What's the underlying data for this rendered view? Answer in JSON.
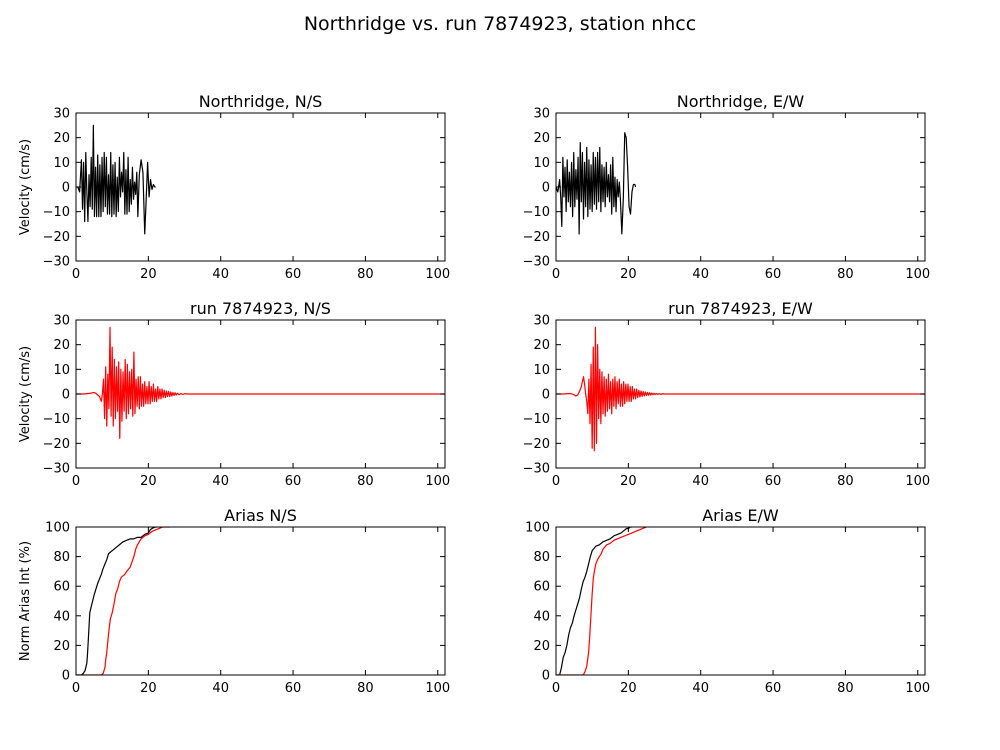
{
  "figure": {
    "title": "Northridge vs. run 7874923, station nhcc"
  },
  "chart_data": [
    {
      "type": "line",
      "title": "Northridge, N/S",
      "xlabel": "",
      "ylabel": "Velocity (cm/s)",
      "xlim": [
        0,
        102
      ],
      "ylim": [
        -30,
        30
      ],
      "xticks": [
        0,
        20,
        40,
        60,
        80,
        100
      ],
      "yticks": [
        -30,
        -20,
        -10,
        0,
        10,
        20,
        30
      ],
      "grid": false,
      "series": [
        {
          "color": "#000000",
          "x": [
            0,
            0.5,
            1,
            1.5,
            1.8,
            2.1,
            2.4,
            2.7,
            3,
            3.3,
            3.6,
            3.9,
            4.2,
            4.5,
            4.8,
            5.1,
            5.4,
            5.7,
            6,
            6.3,
            6.6,
            6.9,
            7.2,
            7.5,
            7.8,
            8.1,
            8.4,
            8.7,
            9,
            9.3,
            9.6,
            9.9,
            10.2,
            10.5,
            10.8,
            11.1,
            11.4,
            11.7,
            12,
            12.3,
            12.6,
            12.9,
            13.2,
            13.5,
            13.8,
            14.1,
            14.4,
            14.7,
            15,
            15.3,
            15.6,
            15.9,
            16.2,
            16.5,
            16.8,
            17.1,
            17.5,
            18,
            18.5,
            19,
            19.4,
            19.8,
            20.2,
            20.6,
            21,
            21.4,
            21.8,
            22
          ],
          "y": [
            0,
            0,
            -2,
            11,
            -9,
            10,
            -14,
            14,
            -2,
            -14,
            5,
            -8,
            12,
            -9,
            25,
            -12,
            8,
            -12,
            13,
            -12,
            9,
            -12,
            12,
            -10,
            14,
            -8,
            12,
            -11,
            5,
            -11,
            14,
            -12,
            9,
            -11,
            10,
            -12,
            4,
            -10,
            12,
            -4,
            6,
            -2,
            14,
            -11,
            7,
            -11,
            12,
            -10,
            3,
            -7,
            8,
            -5,
            2,
            -3,
            6,
            -12,
            5,
            11,
            6,
            -19,
            -5,
            10,
            -4,
            3,
            -1,
            1,
            0,
            0
          ]
        }
      ]
    },
    {
      "type": "line",
      "title": "Northridge, E/W",
      "xlabel": "",
      "ylabel": "",
      "xlim": [
        0,
        102
      ],
      "ylim": [
        -30,
        30
      ],
      "xticks": [
        0,
        20,
        40,
        60,
        80,
        100
      ],
      "yticks": [
        -30,
        -20,
        -10,
        0,
        10,
        20,
        30
      ],
      "grid": false,
      "series": [
        {
          "color": "#000000",
          "x": [
            0,
            0.5,
            1,
            1.3,
            1.6,
            1.9,
            2.2,
            2.5,
            2.8,
            3.1,
            3.4,
            3.7,
            4,
            4.3,
            4.6,
            4.9,
            5.2,
            5.5,
            5.8,
            6.1,
            6.4,
            6.7,
            7,
            7.3,
            7.6,
            7.9,
            8.2,
            8.5,
            8.8,
            9.1,
            9.4,
            9.7,
            10,
            10.3,
            10.6,
            10.9,
            11.2,
            11.5,
            11.8,
            12.1,
            12.4,
            12.7,
            13,
            13.3,
            13.6,
            13.9,
            14.2,
            14.5,
            14.8,
            15.1,
            15.4,
            15.7,
            16,
            16.3,
            16.6,
            16.9,
            17.2,
            17.5,
            17.8,
            18.2,
            18.6,
            19,
            19.4,
            19.8,
            20.2,
            20.6,
            21,
            21.4,
            21.8,
            22
          ],
          "y": [
            0,
            -2,
            3,
            -4,
            -16,
            12,
            -4,
            8,
            -10,
            11,
            -6,
            6,
            -8,
            10,
            -12,
            14,
            -8,
            7,
            -5,
            12,
            -19,
            18,
            -6,
            14,
            -13,
            10,
            -8,
            16,
            -12,
            11,
            -9,
            9,
            -10,
            14,
            -7,
            12,
            -9,
            14,
            -6,
            16,
            -10,
            9,
            -6,
            8,
            -8,
            10,
            -4,
            5,
            -6,
            9,
            -11,
            12,
            -8,
            4,
            -10,
            3,
            -4,
            2,
            -5,
            -19,
            -5,
            22,
            20,
            8,
            -8,
            -11,
            -2,
            1,
            1,
            0
          ]
        }
      ]
    },
    {
      "type": "line",
      "title": "run 7874923, N/S",
      "xlabel": "",
      "ylabel": "Velocity (cm/s)",
      "xlim": [
        0,
        102
      ],
      "ylim": [
        -30,
        30
      ],
      "xticks": [
        0,
        20,
        40,
        60,
        80,
        100
      ],
      "yticks": [
        -30,
        -20,
        -10,
        0,
        10,
        20,
        30
      ],
      "grid": false,
      "series": [
        {
          "color": "#ff0000",
          "x": [
            0,
            2,
            4,
            5,
            5.5,
            6,
            6.5,
            7,
            7.3,
            7.6,
            7.9,
            8.2,
            8.5,
            8.8,
            9.1,
            9.4,
            9.7,
            10,
            10.3,
            10.6,
            10.9,
            11.2,
            11.5,
            11.8,
            12.1,
            12.4,
            12.7,
            13,
            13.3,
            13.6,
            13.9,
            14.2,
            14.5,
            14.8,
            15.1,
            15.4,
            15.7,
            16,
            16.3,
            16.6,
            16.9,
            17.2,
            17.5,
            17.8,
            18.1,
            18.4,
            18.7,
            19,
            19.3,
            19.6,
            19.9,
            20.2,
            20.5,
            20.8,
            21.1,
            21.4,
            21.7,
            22,
            22.3,
            22.6,
            22.9,
            23.2,
            23.5,
            23.8,
            24.1,
            24.4,
            24.7,
            25,
            25.3,
            25.6,
            25.9,
            26.2,
            26.5,
            26.8,
            27.1,
            27.4,
            27.7,
            28,
            28.5,
            29,
            29.5,
            30,
            31,
            33,
            40,
            60,
            80,
            100,
            102
          ],
          "y": [
            0,
            0,
            0.3,
            0.6,
            0.3,
            -0.4,
            -1,
            -3,
            0,
            6,
            -10,
            11,
            -13,
            8,
            -6,
            27,
            -9,
            19,
            -13,
            14,
            -10,
            11,
            -7,
            13,
            -18,
            10,
            -11,
            9,
            -7,
            14,
            -10,
            12,
            -8,
            9,
            -6,
            10,
            -9,
            17,
            -8,
            6,
            -5,
            7,
            -6,
            7,
            -5,
            4,
            -5,
            5,
            -4,
            3,
            -4,
            5,
            -4,
            3,
            -3,
            4,
            -3,
            2,
            -3,
            3,
            -2,
            2,
            -2,
            2,
            -1.5,
            1.5,
            -1.5,
            1.2,
            -1,
            1,
            -1,
            0.8,
            -0.8,
            0.6,
            -0.6,
            0.5,
            -0.4,
            0.3,
            -0.3,
            0.2,
            -0.2,
            0.1,
            0,
            0,
            0,
            0,
            0,
            0,
            0
          ]
        }
      ]
    },
    {
      "type": "line",
      "title": "run 7874923, E/W",
      "xlabel": "",
      "ylabel": "",
      "xlim": [
        0,
        102
      ],
      "ylim": [
        -30,
        30
      ],
      "xticks": [
        0,
        20,
        40,
        60,
        80,
        100
      ],
      "yticks": [
        -30,
        -20,
        -10,
        0,
        10,
        20,
        30
      ],
      "grid": false,
      "series": [
        {
          "color": "#ff0000",
          "x": [
            0,
            2,
            4,
            5,
            5.5,
            6,
            6.5,
            7,
            7.3,
            7.6,
            7.9,
            8.2,
            8.5,
            8.8,
            9.1,
            9.4,
            9.7,
            10,
            10.3,
            10.6,
            10.9,
            11.2,
            11.5,
            11.8,
            12.1,
            12.4,
            12.7,
            13,
            13.3,
            13.6,
            13.9,
            14.2,
            14.5,
            14.8,
            15.1,
            15.4,
            15.7,
            16,
            16.3,
            16.6,
            16.9,
            17.2,
            17.5,
            17.8,
            18.1,
            18.4,
            18.7,
            19,
            19.3,
            19.6,
            19.9,
            20.2,
            20.5,
            20.8,
            21.1,
            21.4,
            21.7,
            22,
            22.3,
            22.6,
            22.9,
            23.2,
            23.5,
            23.8,
            24.1,
            24.4,
            24.7,
            25,
            25.3,
            25.6,
            25.9,
            26.2,
            26.5,
            26.8,
            27.1,
            27.4,
            27.7,
            28,
            28.5,
            29,
            29.5,
            30,
            31,
            33,
            40,
            60,
            80,
            100,
            102
          ],
          "y": [
            0,
            0,
            0.2,
            -0.3,
            -0.8,
            -0.4,
            1,
            3,
            5,
            7,
            4,
            0,
            -3,
            -8,
            6,
            -12,
            12,
            -22,
            19,
            -23,
            27,
            -20,
            20,
            -10,
            10,
            -12,
            9,
            -8,
            7,
            -9,
            6,
            -7,
            8,
            -6,
            5,
            -8,
            6,
            -5,
            7,
            -6,
            5,
            -4,
            6,
            -5,
            4,
            -5,
            5,
            -4,
            4,
            -3,
            4,
            -3,
            3,
            -3,
            3,
            -2,
            2,
            -2,
            2,
            -1.5,
            1.5,
            -1.2,
            1.2,
            -1,
            1,
            -0.8,
            0.8,
            -0.6,
            0.6,
            -0.5,
            0.5,
            -0.4,
            0.4,
            -0.3,
            0.3,
            -0.2,
            0.2,
            -0.1,
            0.1,
            -0.1,
            0.1,
            0,
            0,
            0,
            0,
            0,
            0,
            0,
            0
          ]
        }
      ]
    },
    {
      "type": "line",
      "title": "Arias N/S",
      "xlabel": "",
      "ylabel": "Norm Arias Int (%)",
      "xlim": [
        0,
        102
      ],
      "ylim": [
        0,
        100
      ],
      "xticks": [
        0,
        20,
        40,
        60,
        80,
        100
      ],
      "yticks": [
        0,
        20,
        40,
        60,
        80,
        100
      ],
      "grid": false,
      "series": [
        {
          "color": "#000000",
          "x": [
            0,
            1.5,
            2,
            2.5,
            3,
            3.2,
            3.5,
            3.8,
            4.2,
            4.6,
            5,
            5.5,
            6,
            6.5,
            7,
            7.5,
            8,
            8.5,
            9,
            10,
            11,
            12,
            13,
            14,
            15,
            16,
            17,
            18,
            19,
            20,
            20.5,
            21,
            22,
            22.5
          ],
          "y": [
            0,
            0,
            1,
            3,
            8,
            15,
            28,
            42,
            46,
            50,
            54,
            58,
            62,
            65,
            68,
            72,
            75,
            78,
            82,
            84,
            86,
            88,
            90,
            91,
            92,
            92,
            93,
            93,
            95,
            96,
            98,
            99,
            100,
            100
          ]
        },
        {
          "color": "#ff0000",
          "x": [
            0,
            7,
            7.5,
            8,
            8.2,
            8.5,
            9,
            9.5,
            10,
            10.5,
            11,
            11.5,
            12,
            12.5,
            13,
            13.5,
            14,
            15,
            16,
            16.5,
            17,
            17.5,
            18,
            19,
            20,
            21,
            22,
            23,
            24,
            25,
            26
          ],
          "y": [
            0,
            0,
            1,
            5,
            10,
            15,
            28,
            38,
            42,
            48,
            55,
            58,
            63,
            66,
            67,
            68,
            70,
            73,
            80,
            85,
            88,
            90,
            92,
            94,
            95,
            97,
            98,
            99,
            100,
            100,
            100
          ]
        }
      ]
    },
    {
      "type": "line",
      "title": "Arias E/W",
      "xlabel": "",
      "ylabel": "",
      "xlim": [
        0,
        102
      ],
      "ylim": [
        0,
        100
      ],
      "xticks": [
        0,
        20,
        40,
        60,
        80,
        100
      ],
      "yticks": [
        0,
        20,
        40,
        60,
        80,
        100
      ],
      "grid": false,
      "series": [
        {
          "color": "#000000",
          "x": [
            0,
            1,
            1.5,
            2,
            2.5,
            3,
            3.5,
            4,
            4.5,
            5,
            5.5,
            6,
            6.5,
            7,
            7.5,
            8,
            8.5,
            9,
            9.5,
            10,
            11,
            12,
            13,
            14,
            15,
            16,
            17,
            18,
            19,
            19.5,
            20,
            20.5,
            21
          ],
          "y": [
            0,
            0,
            5,
            12,
            15,
            20,
            27,
            32,
            35,
            40,
            44,
            48,
            52,
            58,
            63,
            66,
            70,
            75,
            80,
            84,
            87,
            88,
            90,
            91,
            92,
            94,
            95,
            96,
            98,
            99,
            99,
            100,
            100
          ]
        },
        {
          "color": "#ff0000",
          "x": [
            0,
            7.5,
            8,
            8.5,
            9,
            9.3,
            9.6,
            10,
            10.3,
            10.6,
            11,
            11.5,
            12,
            12.5,
            13,
            14,
            15,
            16,
            17,
            18,
            19,
            20,
            21,
            22,
            23,
            24,
            25
          ],
          "y": [
            0,
            0,
            2,
            6,
            15,
            25,
            38,
            55,
            65,
            70,
            75,
            78,
            80,
            82,
            85,
            88,
            89,
            91,
            92,
            93,
            94,
            95,
            96,
            97,
            98,
            99,
            100
          ]
        }
      ]
    }
  ]
}
